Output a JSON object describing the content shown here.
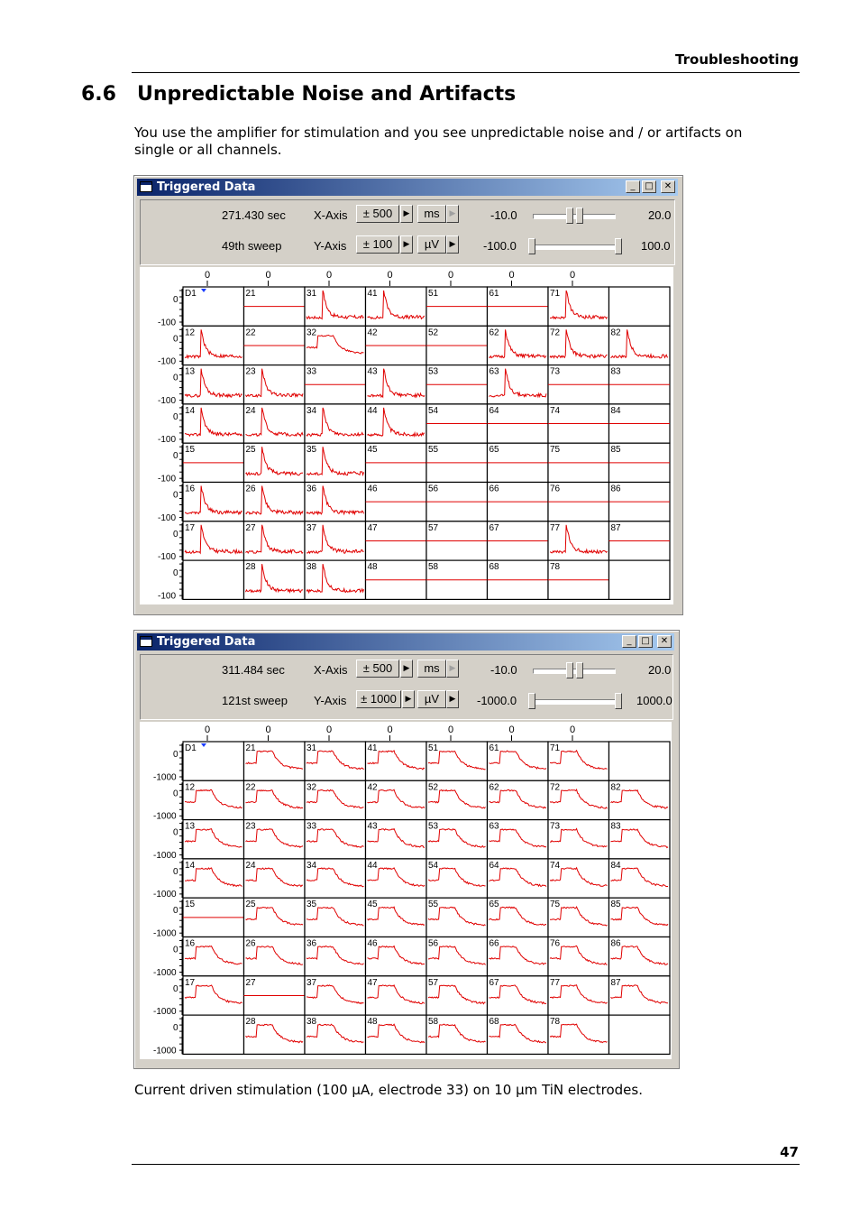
{
  "header": {
    "title": "Troubleshooting"
  },
  "section": {
    "title": "6.6   Unpredictable Noise and Artifacts",
    "intro": "You use the amplifier for stimulation and you see unpredictable noise and / or artifacts on single or all channels."
  },
  "caption": "Current driven stimulation (100 µA, electrode 33) on 10 µm TiN electrodes.",
  "page_number": "47",
  "trace_color": "#e00000",
  "windows": [
    {
      "title": "Triggered Data",
      "time": "271.430 sec",
      "sweep": "49th sweep",
      "x_axis_label": "X-Axis",
      "y_axis_label": "Y-Axis",
      "x_range": "± 500",
      "x_unit": "ms",
      "y_range": "± 100",
      "y_unit": "µV",
      "slider1_min": "-10.0",
      "slider1_max": "20.0",
      "slider2_min": "-100.0",
      "slider2_max": "100.0",
      "y_tick_top": "0",
      "y_tick_bottom": "-100",
      "x_tick": "0",
      "marker_label": "D1",
      "pattern": "noise"
    },
    {
      "title": "Triggered Data",
      "time": "311.484 sec",
      "sweep": "121st sweep",
      "x_axis_label": "X-Axis",
      "y_axis_label": "Y-Axis",
      "x_range": "± 500",
      "x_unit": "ms",
      "y_range": "± 1000",
      "y_unit": "µV",
      "slider1_min": "-10.0",
      "slider1_max": "20.0",
      "slider2_min": "-1000.0",
      "slider2_max": "1000.0",
      "y_tick_top": "0",
      "y_tick_bottom": "-1000",
      "x_tick": "0",
      "marker_label": "D1",
      "pattern": "pulse"
    }
  ],
  "grid": {
    "rows": 8,
    "cols": 8,
    "labels": [
      [
        "",
        "21",
        "31",
        "41",
        "51",
        "61",
        "71",
        ""
      ],
      [
        "12",
        "22",
        "32",
        "42",
        "52",
        "62",
        "72",
        "82"
      ],
      [
        "13",
        "23",
        "33",
        "43",
        "53",
        "63",
        "73",
        "83"
      ],
      [
        "14",
        "24",
        "34",
        "44",
        "54",
        "64",
        "74",
        "84"
      ],
      [
        "15",
        "25",
        "35",
        "45",
        "55",
        "65",
        "75",
        "85"
      ],
      [
        "16",
        "26",
        "36",
        "46",
        "56",
        "66",
        "76",
        "86"
      ],
      [
        "17",
        "27",
        "37",
        "47",
        "57",
        "67",
        "77",
        "87"
      ],
      [
        "",
        "28",
        "38",
        "48",
        "58",
        "68",
        "78",
        ""
      ]
    ],
    "noise_map": [
      [
        "e",
        "f",
        "s",
        "s",
        "f",
        "f",
        "s",
        "e"
      ],
      [
        "s",
        "f",
        "p",
        "f",
        "f",
        "s",
        "s",
        "s"
      ],
      [
        "s",
        "s",
        "f",
        "s",
        "f",
        "s",
        "f",
        "f"
      ],
      [
        "s",
        "s",
        "s",
        "s",
        "f",
        "f",
        "f",
        "f"
      ],
      [
        "f",
        "s",
        "s",
        "f",
        "f",
        "f",
        "f",
        "f"
      ],
      [
        "s",
        "s",
        "s",
        "f",
        "f",
        "f",
        "f",
        "f"
      ],
      [
        "s",
        "s",
        "s",
        "f",
        "f",
        "f",
        "s",
        "f"
      ],
      [
        "e",
        "s",
        "s",
        "f",
        "f",
        "f",
        "f",
        "e"
      ]
    ],
    "pulse_map": [
      [
        "e",
        "p",
        "p",
        "p",
        "p",
        "p",
        "p",
        "e"
      ],
      [
        "p",
        "p",
        "p",
        "p",
        "p",
        "p",
        "p",
        "p"
      ],
      [
        "p",
        "p",
        "p",
        "p",
        "p",
        "p",
        "p",
        "p"
      ],
      [
        "p",
        "p",
        "p",
        "p",
        "p",
        "p",
        "p",
        "p"
      ],
      [
        "f",
        "p",
        "p",
        "p",
        "p",
        "p",
        "p",
        "p"
      ],
      [
        "p",
        "p",
        "p",
        "p",
        "p",
        "p",
        "p",
        "p"
      ],
      [
        "p",
        "f",
        "p",
        "p",
        "p",
        "p",
        "p",
        "p"
      ],
      [
        "e",
        "p",
        "p",
        "p",
        "p",
        "p",
        "p",
        "e"
      ]
    ]
  }
}
